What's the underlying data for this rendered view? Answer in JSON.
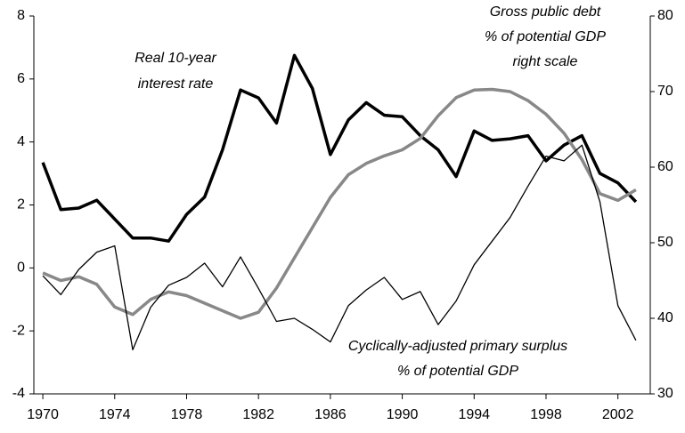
{
  "chart_data": {
    "type": "line",
    "x": [
      1970,
      1971,
      1972,
      1973,
      1974,
      1975,
      1976,
      1977,
      1978,
      1979,
      1980,
      1981,
      1982,
      1983,
      1984,
      1985,
      1986,
      1987,
      1988,
      1989,
      1990,
      1991,
      1992,
      1993,
      1994,
      1995,
      1996,
      1997,
      1998,
      1999,
      2000,
      2001,
      2002,
      2003
    ],
    "xlim": [
      1969.5,
      2003.8
    ],
    "xticks": [
      1970,
      1974,
      1978,
      1982,
      1986,
      1990,
      1994,
      1998,
      2002
    ],
    "ylim": [
      -4,
      8
    ],
    "yticks": [
      -4,
      -2,
      0,
      2,
      4,
      6,
      8
    ],
    "y2lim": [
      30,
      80
    ],
    "y2ticks": [
      30,
      40,
      50,
      60,
      70,
      80
    ],
    "series": [
      {
        "color": "#000000",
        "values": [
          3.35,
          1.85,
          1.9,
          2.15,
          1.55,
          0.95,
          0.95,
          0.85,
          1.7,
          2.25,
          3.75,
          5.65,
          5.4,
          4.6,
          6.75,
          5.7,
          3.6,
          4.7,
          5.25,
          4.85,
          4.8,
          4.2,
          3.75,
          2.9,
          4.35,
          4.05,
          4.1,
          4.2,
          3.4,
          3.9,
          4.2,
          3.0,
          2.7,
          2.1
        ]
      },
      {
        "color": "#888888",
        "axis": "y2",
        "values": [
          46,
          45,
          45.5,
          44.5,
          41.5,
          40.5,
          42.5,
          43.5,
          43,
          42,
          41,
          40,
          40.8,
          44,
          48,
          52,
          56,
          59,
          60.5,
          61.5,
          62.3,
          63.8,
          66.8,
          69.2,
          70.2,
          70.3,
          70,
          68.8,
          67,
          64.5,
          61,
          56.5,
          55.6,
          57
        ]
      },
      {
        "color": "#000000",
        "values": [
          -0.25,
          -0.85,
          -0.05,
          0.5,
          0.7,
          -2.6,
          -1.25,
          -0.55,
          -0.3,
          0.15,
          -0.6,
          0.35,
          -0.65,
          -1.7,
          -1.6,
          -1.95,
          -2.35,
          -1.2,
          -0.7,
          -0.3,
          -1.0,
          -0.75,
          -1.8,
          -1.05,
          0.1,
          0.85,
          1.6,
          2.6,
          3.55,
          3.4,
          3.9,
          2.1,
          -1.2,
          -2.3
        ]
      }
    ],
    "annotations": [
      {
        "lines": [
          "Real 10-year",
          "interest rate"
        ]
      },
      {
        "lines": [
          "Gross public debt",
          "% of potential GDP",
          "right scale"
        ]
      },
      {
        "lines": [
          "Cyclically-adjusted primary surplus",
          "% of potential GDP"
        ]
      }
    ]
  }
}
